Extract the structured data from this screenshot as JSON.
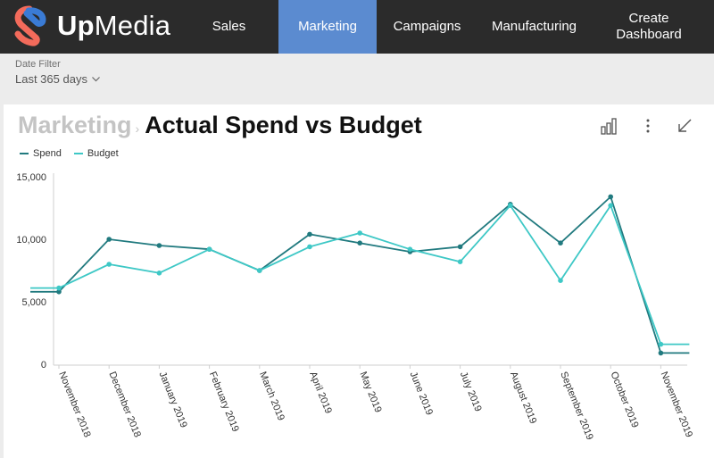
{
  "app": {
    "brand_up": "Up",
    "brand_media": "Media",
    "logo_colors": [
      "#f36b5b",
      "#3a7bd5"
    ]
  },
  "nav": {
    "items": [
      {
        "label": "Sales",
        "active": false
      },
      {
        "label": "Marketing",
        "active": true
      },
      {
        "label": "Campaigns",
        "active": false
      },
      {
        "label": "Manufacturing",
        "active": false
      },
      {
        "label": "Create Dashboard",
        "active": false
      }
    ],
    "active_color": "#5b8bd0",
    "bar_color": "#2b2b2b"
  },
  "filter": {
    "label": "Date Filter",
    "value": "Last 365 days",
    "icon": "chevron-down-icon"
  },
  "card": {
    "breadcrumb": "Marketing",
    "separator": "›",
    "title": "Actual Spend vs Budget",
    "tools": [
      "bar-chart-icon",
      "more-vertical-icon",
      "collapse-arrow-icon"
    ]
  },
  "chart_data": {
    "type": "line",
    "title": "Actual Spend vs Budget",
    "xlabel": "",
    "ylabel": "",
    "categories": [
      "November 2018",
      "December 2018",
      "January 2019",
      "February 2019",
      "March 2019",
      "April 2019",
      "May 2019",
      "June 2019",
      "July 2019",
      "August 2019",
      "September 2019",
      "October 2019",
      "November 2019"
    ],
    "series": [
      {
        "name": "Spend",
        "color": "#217a7f",
        "values": [
          5800,
          10000,
          9500,
          9200,
          7500,
          10400,
          9700,
          9000,
          9400,
          12800,
          9700,
          13400,
          900
        ]
      },
      {
        "name": "Budget",
        "color": "#3ec8c6",
        "values": [
          6100,
          8000,
          7300,
          9200,
          7500,
          9400,
          10500,
          9200,
          8200,
          12700,
          6700,
          12700,
          1600
        ]
      }
    ],
    "ylim": [
      0,
      15000
    ],
    "yticks": [
      "0",
      "5,000",
      "10,000",
      "15,000"
    ],
    "ytick_values": [
      0,
      5000,
      10000,
      15000
    ],
    "grid": false,
    "legend": "top-left"
  }
}
